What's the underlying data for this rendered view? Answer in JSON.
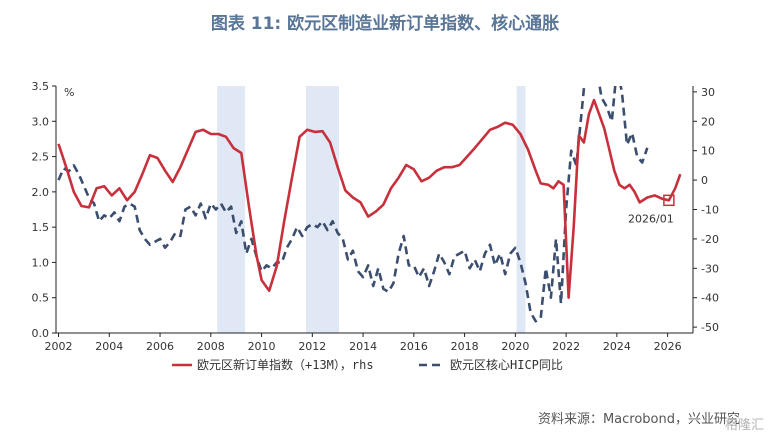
{
  "title": "图表 11: 欧元区制造业新订单指数、核心通胀",
  "source": "资料来源：Macrobond，兴业研究",
  "watermark": "格隆汇",
  "chart_data": {
    "type": "line",
    "x_range": [
      2001.9,
      2027.0
    ],
    "x_ticks": [
      "2002",
      "2004",
      "2006",
      "2008",
      "2010",
      "2012",
      "2014",
      "2016",
      "2018",
      "2020",
      "2022",
      "2024",
      "2026"
    ],
    "left_axis": {
      "unit": "%",
      "ylim": [
        0,
        3.5
      ],
      "ticks": [
        "0.0",
        "0.5",
        "1.0",
        "1.5",
        "2.0",
        "2.5",
        "3.0",
        "3.5"
      ]
    },
    "right_axis": {
      "ylim": [
        -52,
        32
      ],
      "ticks": [
        "-50",
        "-40",
        "-30",
        "-20",
        "-10",
        "0",
        "10",
        "20",
        "30"
      ]
    },
    "shaded_periods": [
      [
        2008.25,
        2009.35
      ],
      [
        2011.75,
        2013.05
      ],
      [
        2020.05,
        2020.4
      ]
    ],
    "annotation": {
      "label": "2026/01",
      "x": 2026.05,
      "y": 1.88,
      "axis": "left"
    },
    "series": [
      {
        "name": "欧元区新订单指数（+13M），rhs",
        "axis": "left",
        "color": "#c8303c",
        "style": "solid",
        "x": [
          2002.0,
          2002.3,
          2002.6,
          2002.9,
          2003.2,
          2003.5,
          2003.8,
          2004.1,
          2004.4,
          2004.7,
          2005.0,
          2005.3,
          2005.6,
          2005.9,
          2006.2,
          2006.5,
          2006.8,
          2007.1,
          2007.4,
          2007.7,
          2008.0,
          2008.3,
          2008.6,
          2008.9,
          2009.2,
          2009.5,
          2009.8,
          2010.0,
          2010.3,
          2010.6,
          2010.9,
          2011.2,
          2011.5,
          2011.8,
          2012.1,
          2012.4,
          2012.7,
          2013.0,
          2013.3,
          2013.6,
          2013.9,
          2014.2,
          2014.5,
          2014.8,
          2015.1,
          2015.4,
          2015.7,
          2016.0,
          2016.3,
          2016.6,
          2016.9,
          2017.2,
          2017.5,
          2017.8,
          2018.1,
          2018.4,
          2018.7,
          2019.0,
          2019.3,
          2019.6,
          2019.9,
          2020.2,
          2020.5,
          2020.8,
          2021.0,
          2021.3,
          2021.5,
          2021.7,
          2021.9,
          2022.1,
          2022.3,
          2022.5,
          2022.7,
          2022.9,
          2023.1,
          2023.3,
          2023.5,
          2023.7,
          2023.9,
          2024.1,
          2024.3,
          2024.5,
          2024.7,
          2024.9,
          2025.2,
          2025.5,
          2025.8,
          2026.05,
          2026.3,
          2026.5
        ],
        "values": [
          2.68,
          2.35,
          2.0,
          1.8,
          1.78,
          2.05,
          2.08,
          1.95,
          2.05,
          1.88,
          2.0,
          2.25,
          2.52,
          2.48,
          2.3,
          2.14,
          2.35,
          2.6,
          2.85,
          2.88,
          2.82,
          2.82,
          2.78,
          2.62,
          2.55,
          1.8,
          1.1,
          0.75,
          0.6,
          0.95,
          1.6,
          2.2,
          2.78,
          2.88,
          2.85,
          2.86,
          2.7,
          2.35,
          2.02,
          1.92,
          1.85,
          1.65,
          1.72,
          1.82,
          2.05,
          2.2,
          2.38,
          2.32,
          2.15,
          2.2,
          2.3,
          2.35,
          2.35,
          2.38,
          2.5,
          2.62,
          2.75,
          2.88,
          2.92,
          2.98,
          2.95,
          2.82,
          2.6,
          2.3,
          2.12,
          2.1,
          2.05,
          2.15,
          2.1,
          0.5,
          1.5,
          2.8,
          2.7,
          3.1,
          3.3,
          3.1,
          2.9,
          2.6,
          2.3,
          2.1,
          2.05,
          2.1,
          2.0,
          1.85,
          1.92,
          1.95,
          1.9,
          1.88,
          2.05,
          2.25
        ]
      },
      {
        "name": "欧元区核心HICP同比",
        "axis": "right",
        "color": "#3c4e6e",
        "style": "dashed",
        "x": [
          2002.0,
          2002.2,
          2002.4,
          2002.6,
          2002.8,
          2003.0,
          2003.2,
          2003.4,
          2003.6,
          2003.8,
          2004.0,
          2004.2,
          2004.4,
          2004.6,
          2004.8,
          2005.0,
          2005.2,
          2005.4,
          2005.6,
          2005.8,
          2006.0,
          2006.2,
          2006.4,
          2006.6,
          2006.8,
          2007.0,
          2007.2,
          2007.4,
          2007.6,
          2007.8,
          2008.0,
          2008.2,
          2008.4,
          2008.6,
          2008.8,
          2009.0,
          2009.2,
          2009.4,
          2009.6,
          2009.8,
          2010.0,
          2010.2,
          2010.4,
          2010.6,
          2010.8,
          2011.0,
          2011.2,
          2011.4,
          2011.6,
          2011.8,
          2012.0,
          2012.2,
          2012.4,
          2012.6,
          2012.8,
          2013.0,
          2013.2,
          2013.4,
          2013.6,
          2013.8,
          2014.0,
          2014.2,
          2014.4,
          2014.6,
          2014.8,
          2015.0,
          2015.2,
          2015.4,
          2015.6,
          2015.8,
          2016.0,
          2016.2,
          2016.4,
          2016.6,
          2016.8,
          2017.0,
          2017.2,
          2017.4,
          2017.6,
          2017.8,
          2018.0,
          2018.2,
          2018.4,
          2018.6,
          2018.8,
          2019.0,
          2019.2,
          2019.4,
          2019.6,
          2019.8,
          2020.0,
          2020.2,
          2020.4,
          2020.6,
          2020.8,
          2021.0,
          2021.2,
          2021.4,
          2021.6,
          2021.8,
          2022.0,
          2022.2,
          2022.4,
          2022.6,
          2022.8,
          2023.0,
          2023.2,
          2023.4,
          2023.6,
          2023.8,
          2024.0,
          2024.2,
          2024.4,
          2024.6,
          2024.8,
          2025.0,
          2025.2
        ],
        "values": [
          0,
          4,
          3,
          5,
          2,
          -2,
          -6,
          -8,
          -14,
          -12,
          -13,
          -11,
          -14,
          -9,
          -8,
          -9,
          -17,
          -20,
          -22,
          -21,
          -20,
          -23,
          -21,
          -18,
          -19,
          -10,
          -9,
          -12,
          -8,
          -13,
          -8,
          -10,
          -8,
          -11,
          -9,
          -18,
          -14,
          -25,
          -20,
          -26,
          -31,
          -29,
          -30,
          -28,
          -28,
          -23,
          -20,
          -16,
          -19,
          -16,
          -15,
          -16,
          -14,
          -17,
          -14,
          -18,
          -20,
          -27,
          -24,
          -31,
          -33,
          -29,
          -36,
          -30,
          -37,
          -38,
          -35,
          -25,
          -19,
          -29,
          -29,
          -33,
          -30,
          -36,
          -31,
          -25,
          -28,
          -32,
          -26,
          -25,
          -24,
          -30,
          -27,
          -31,
          -25,
          -22,
          -29,
          -25,
          -32,
          -25,
          -23,
          -28,
          -35,
          -45,
          -48,
          -47,
          -30,
          -40,
          -20,
          -42,
          -10,
          10,
          5,
          22,
          40,
          35,
          38,
          28,
          25,
          20,
          38,
          30,
          12,
          16,
          8,
          6,
          11
        ]
      }
    ]
  }
}
